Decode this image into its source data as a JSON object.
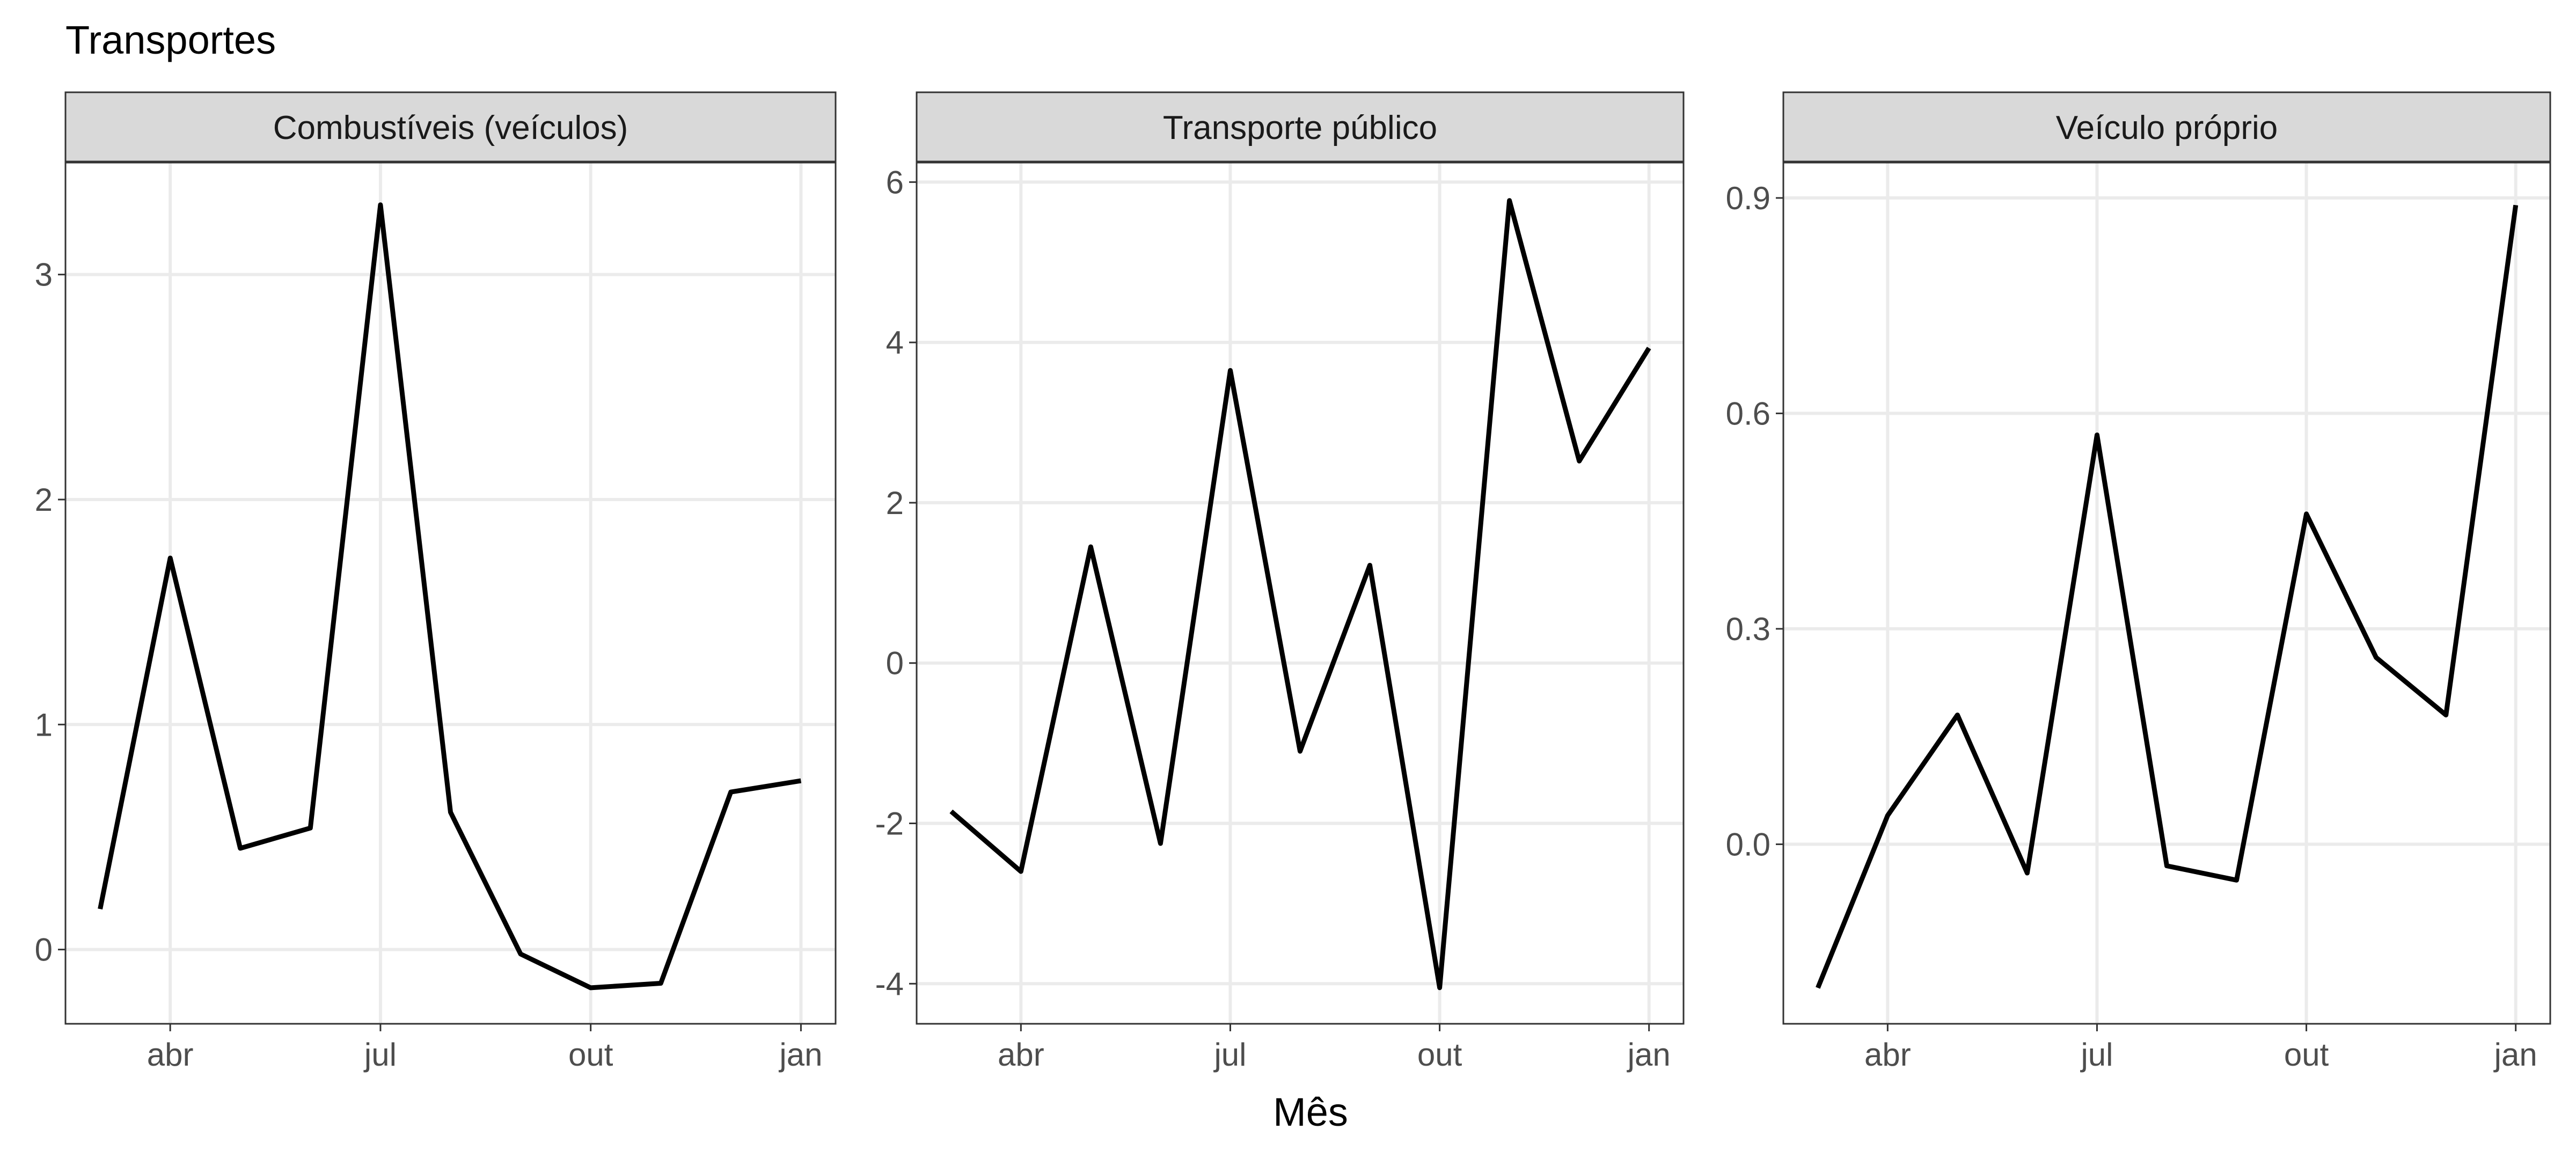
{
  "title": "Transportes",
  "xlabel": "Mês",
  "ylabel": "",
  "chart_data": {
    "type": "line",
    "title": "Transportes",
    "xlabel": "Mês",
    "ylabel": "",
    "grid": true,
    "legend": "none",
    "x_tick_labels": [
      "abr",
      "jul",
      "out",
      "jan"
    ],
    "x": [
      "2023-03",
      "2023-04",
      "2023-05",
      "2023-06",
      "2023-07",
      "2023-08",
      "2023-09",
      "2023-10",
      "2023-11",
      "2023-12",
      "2024-01"
    ],
    "panels": [
      {
        "name": "Combustíveis (veículos)",
        "ylim": [
          -0.33,
          3.5
        ],
        "y_ticks": [
          0,
          1,
          2,
          3
        ],
        "y_tick_labels": [
          "0",
          "1",
          "2",
          "3"
        ],
        "values": [
          0.18,
          1.74,
          0.45,
          0.54,
          3.31,
          0.61,
          -0.02,
          -0.17,
          -0.15,
          0.7,
          0.75
        ]
      },
      {
        "name": "Transporte público",
        "ylim": [
          -4.5,
          6.25
        ],
        "y_ticks": [
          -4,
          -2,
          0,
          2,
          4,
          6
        ],
        "y_tick_labels": [
          "-4",
          "-2",
          "0",
          "2",
          "4",
          "6"
        ],
        "values": [
          -1.85,
          -2.6,
          1.45,
          -2.25,
          3.65,
          -1.1,
          1.22,
          -4.05,
          5.77,
          2.52,
          3.93
        ]
      },
      {
        "name": "Veículo próprio",
        "ylim": [
          -0.25,
          0.95
        ],
        "y_ticks": [
          0.0,
          0.3,
          0.6,
          0.9
        ],
        "y_tick_labels": [
          "0.0",
          "0.3",
          "0.6",
          "0.9"
        ],
        "values": [
          -0.2,
          0.04,
          0.18,
          -0.04,
          0.57,
          -0.03,
          -0.05,
          0.46,
          0.26,
          0.18,
          0.89
        ]
      }
    ]
  }
}
